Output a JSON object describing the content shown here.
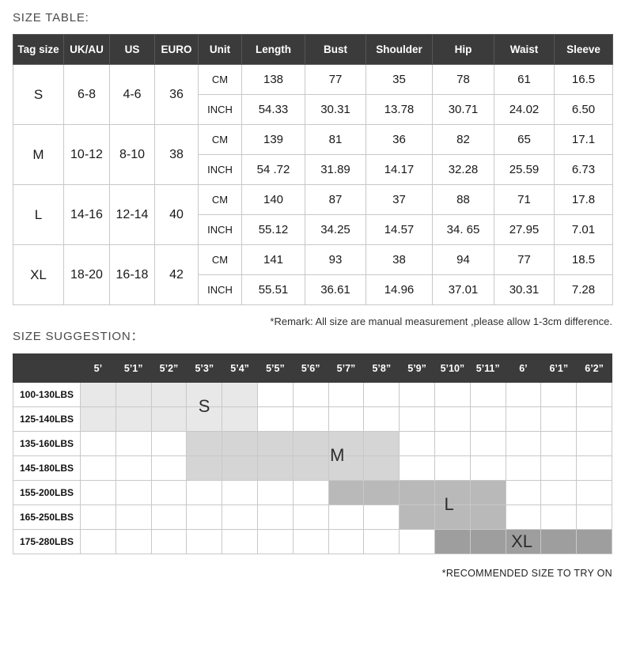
{
  "chart_data": [
    {
      "type": "table",
      "title": "SIZE TABLE:",
      "columns": [
        "Tag size",
        "UK/AU",
        "US",
        "EURO",
        "Unit",
        "Length",
        "Bust",
        "Shoulder",
        "Hip",
        "Waist",
        "Sleeve"
      ],
      "unit_labels": [
        "CM",
        "INCH"
      ],
      "sizes": [
        {
          "tag": "S",
          "uk_au": "6-8",
          "us": "4-6",
          "euro": "36",
          "cm": [
            "138",
            "77",
            "35",
            "78",
            "61",
            "16.5"
          ],
          "inch": [
            "54.33",
            "30.31",
            "13.78",
            "30.71",
            "24.02",
            "6.50"
          ]
        },
        {
          "tag": "M",
          "uk_au": "10-12",
          "us": "8-10",
          "euro": "38",
          "cm": [
            "139",
            "81",
            "36",
            "82",
            "65",
            "17.1"
          ],
          "inch": [
            "54 .72",
            "31.89",
            "14.17",
            "32.28",
            "25.59",
            "6.73"
          ]
        },
        {
          "tag": "L",
          "uk_au": "14-16",
          "us": "12-14",
          "euro": "40",
          "cm": [
            "140",
            "87",
            "37",
            "88",
            "71",
            "17.8"
          ],
          "inch": [
            "55.12",
            "34.25",
            "14.57",
            "34. 65",
            "27.95",
            "7.01"
          ]
        },
        {
          "tag": "XL",
          "uk_au": "18-20",
          "us": "16-18",
          "euro": "42",
          "cm": [
            "141",
            "93",
            "38",
            "94",
            "77",
            "18.5"
          ],
          "inch": [
            "55.51",
            "36.61",
            "14.96",
            "37.01",
            "30.31",
            "7.28"
          ]
        }
      ],
      "remark": "*Remark: All size are manual measurement ,please allow 1-3cm difference."
    },
    {
      "type": "heatmap",
      "title": "SIZE SUGGESTION：",
      "x_labels": [
        "5’",
        "5’1”",
        "5’2”",
        "5’3”",
        "5’4”",
        "5’5”",
        "5’6”",
        "5’7”",
        "5’8”",
        "5’9”",
        "5’10”",
        "5’11”",
        "6’",
        "6’1”",
        "6’2”"
      ],
      "y_labels": [
        "100-130LBS",
        "125-140LBS",
        "135-160LBS",
        "145-180LBS",
        "155-200LBS",
        "165-250LBS",
        "175-280LBS"
      ],
      "regions": [
        {
          "size": "S",
          "color": "#e8e8e8",
          "cells": [
            {
              "row": 0,
              "from": 0,
              "to": 4
            },
            {
              "row": 1,
              "from": 0,
              "to": 4
            }
          ],
          "label": {
            "row": 1.0,
            "col": 3.5
          }
        },
        {
          "size": "M",
          "color": "#d5d5d5",
          "cells": [
            {
              "row": 2,
              "from": 3,
              "to": 8
            },
            {
              "row": 3,
              "from": 3,
              "to": 8
            }
          ],
          "label": {
            "row": 3.0,
            "col": 7.25
          }
        },
        {
          "size": "L",
          "color": "#b9b9b9",
          "cells": [
            {
              "row": 4,
              "from": 7,
              "to": 11
            },
            {
              "row": 5,
              "from": 9,
              "to": 11
            }
          ],
          "label": {
            "row": 5.0,
            "col": 10.4
          }
        },
        {
          "size": "XL",
          "color": "#9e9e9e",
          "cells": [
            {
              "row": 6,
              "from": 10,
              "to": 14
            }
          ],
          "label": {
            "row": 6.5,
            "col": 12.45
          }
        }
      ],
      "footnote": "*RECOMMENDED SIZE TO TRY ON"
    }
  ]
}
